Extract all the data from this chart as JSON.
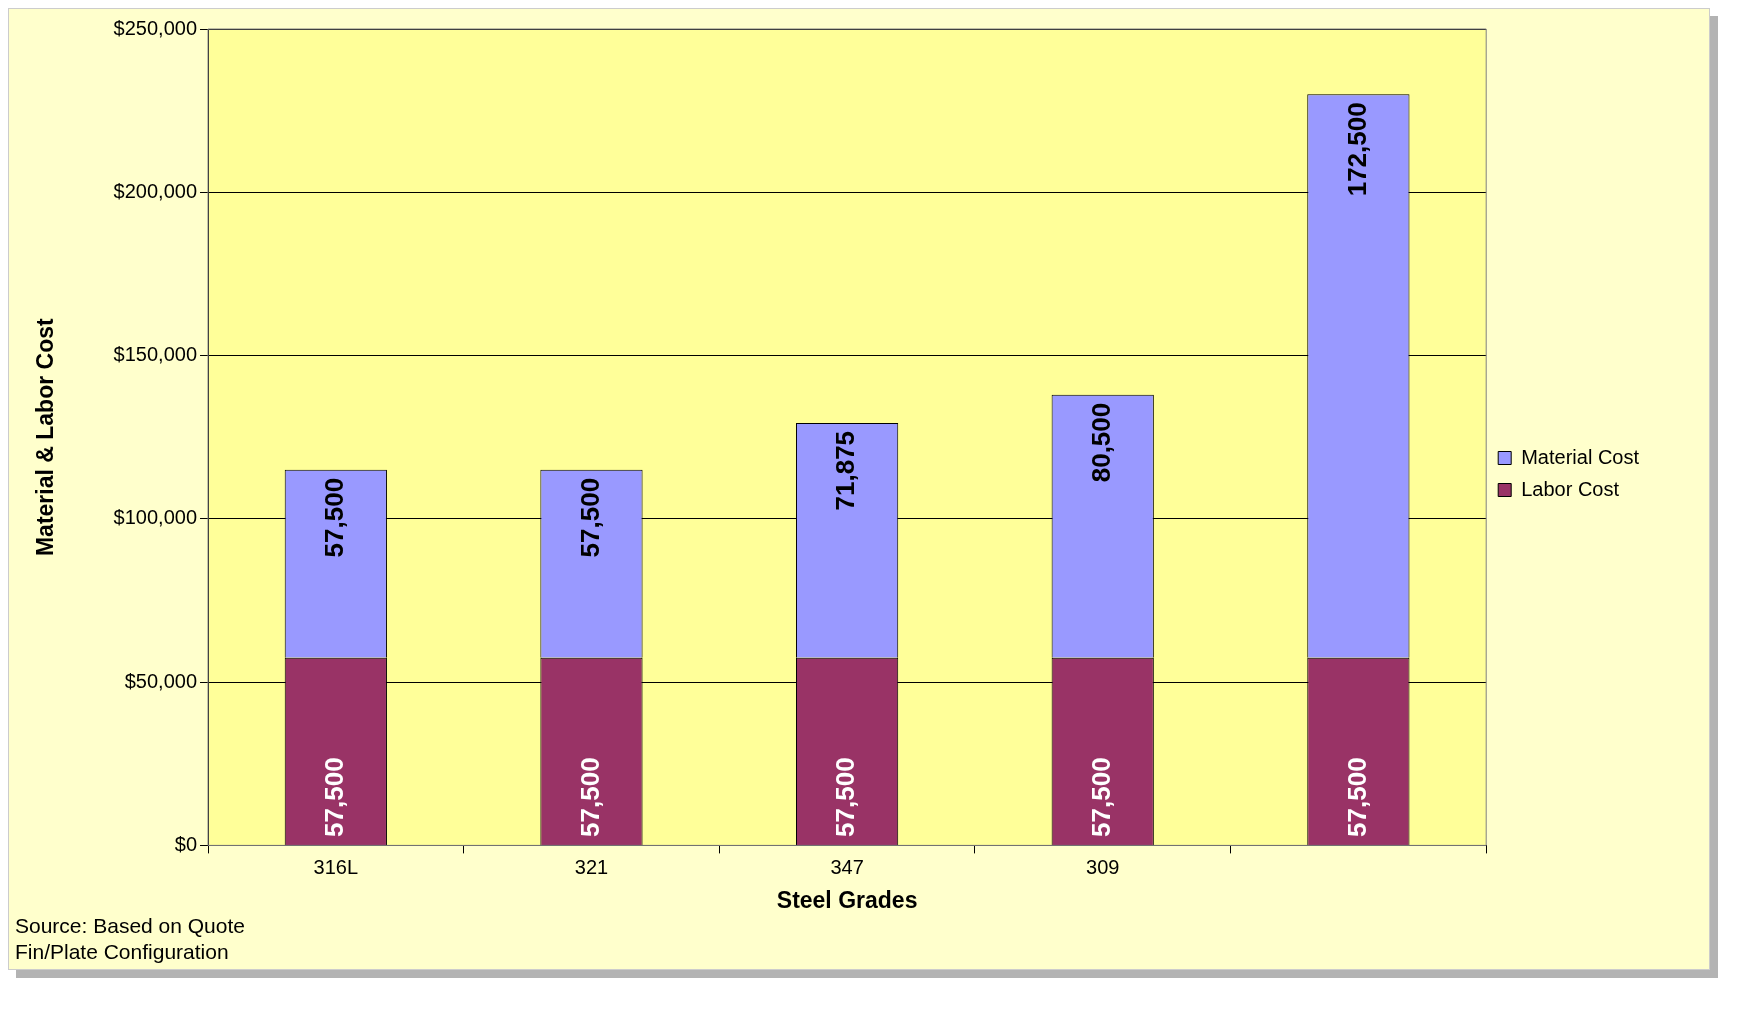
{
  "chart_data": {
    "type": "bar",
    "stacked": true,
    "xlabel": "Steel Grades",
    "ylabel": "Material & Labor Cost",
    "categories": [
      "316L",
      "321",
      "347",
      "309",
      null
    ],
    "series": [
      {
        "name": "Labor Cost",
        "color": "#993366",
        "values": [
          57500,
          57500,
          57500,
          57500,
          57500
        ],
        "value_labels": [
          "57,500",
          "57,500",
          "57,500",
          "57,500",
          "57,500"
        ]
      },
      {
        "name": "Material Cost",
        "color": "#9999ff",
        "values": [
          57500,
          57500,
          71875,
          80500,
          172500
        ],
        "value_labels": [
          "57,500",
          "57,500",
          "71,875",
          "80,500",
          "172,500"
        ]
      }
    ],
    "ylim": [
      0,
      250000
    ],
    "yticks": [
      {
        "value": 0,
        "label": "$0"
      },
      {
        "value": 50000,
        "label": "$50,000"
      },
      {
        "value": 100000,
        "label": "$100,000"
      },
      {
        "value": 150000,
        "label": "$150,000"
      },
      {
        "value": 200000,
        "label": "$200,000"
      },
      {
        "value": 250000,
        "label": "$250,000"
      }
    ],
    "grid": "y",
    "legend": "right",
    "annotations": [
      "Source: Based on Quote",
      "Fin/Plate Configuration"
    ]
  }
}
